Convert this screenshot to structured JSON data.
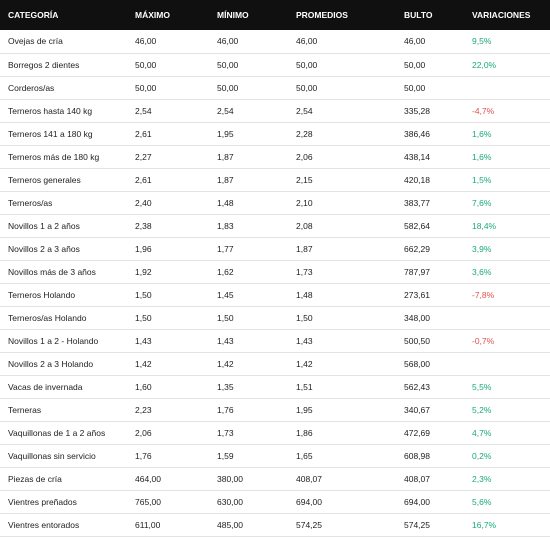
{
  "colors": {
    "header_bg": "#101010",
    "header_text": "#ffffff",
    "positive": "#1aa97a",
    "negative": "#e0504e",
    "row_border": "#e3e3e3"
  },
  "table": {
    "headers": [
      "CATEGORÍA",
      "MÁXIMO",
      "MÍNIMO",
      "PROMEDIOS",
      "BULTO",
      "VARIACIONES"
    ],
    "rows": [
      [
        "Ovejas de cría",
        "46,00",
        "46,00",
        "46,00",
        "46,00",
        "9,5%"
      ],
      [
        "Borregos 2 dientes",
        "50,00",
        "50,00",
        "50,00",
        "50,00",
        "22,0%"
      ],
      [
        "Corderos/as",
        "50,00",
        "50,00",
        "50,00",
        "50,00",
        ""
      ],
      [
        "Terneros hasta 140 kg",
        "2,54",
        "2,54",
        "2,54",
        "335,28",
        "-4,7%"
      ],
      [
        "Terneros 141 a 180 kg",
        "2,61",
        "1,95",
        "2,28",
        "386,46",
        "1,6%"
      ],
      [
        "Terneros más de 180 kg",
        "2,27",
        "1,87",
        "2,06",
        "438,14",
        "1,6%"
      ],
      [
        "Terneros generales",
        "2,61",
        "1,87",
        "2,15",
        "420,18",
        "1,5%"
      ],
      [
        "Terneros/as",
        "2,40",
        "1,48",
        "2,10",
        "383,77",
        "7,6%"
      ],
      [
        "Novillos 1 a 2 años",
        "2,38",
        "1,83",
        "2,08",
        "582,64",
        "18,4%"
      ],
      [
        "Novillos 2 a 3 años",
        "1,96",
        "1,77",
        "1,87",
        "662,29",
        "3,9%"
      ],
      [
        "Novillos más de 3 años",
        "1,92",
        "1,62",
        "1,73",
        "787,97",
        "3,6%"
      ],
      [
        "Terneros Holando",
        "1,50",
        "1,45",
        "1,48",
        "273,61",
        "-7,8%"
      ],
      [
        "Terneros/as Holando",
        "1,50",
        "1,50",
        "1,50",
        "348,00",
        ""
      ],
      [
        "Novillos 1 a 2 - Holando",
        "1,43",
        "1,43",
        "1,43",
        "500,50",
        "-0,7%"
      ],
      [
        "Novillos 2 a 3 Holando",
        "1,42",
        "1,42",
        "1,42",
        "568,00",
        ""
      ],
      [
        "Vacas de invernada",
        "1,60",
        "1,35",
        "1,51",
        "562,43",
        "5,5%"
      ],
      [
        "Terneras",
        "2,23",
        "1,76",
        "1,95",
        "340,67",
        "5,2%"
      ],
      [
        "Vaquillonas de 1 a 2 años",
        "2,06",
        "1,73",
        "1,86",
        "472,69",
        "4,7%"
      ],
      [
        "Vaquillonas sin servicio",
        "1,76",
        "1,59",
        "1,65",
        "608,98",
        "0,2%"
      ],
      [
        "Piezas de cría",
        "464,00",
        "380,00",
        "408,07",
        "408,07",
        "2,3%"
      ],
      [
        "Vientres preñados",
        "765,00",
        "630,00",
        "694,00",
        "694,00",
        "5,6%"
      ],
      [
        "Vientres entorados",
        "611,00",
        "485,00",
        "574,25",
        "574,25",
        "16,7%"
      ]
    ]
  }
}
